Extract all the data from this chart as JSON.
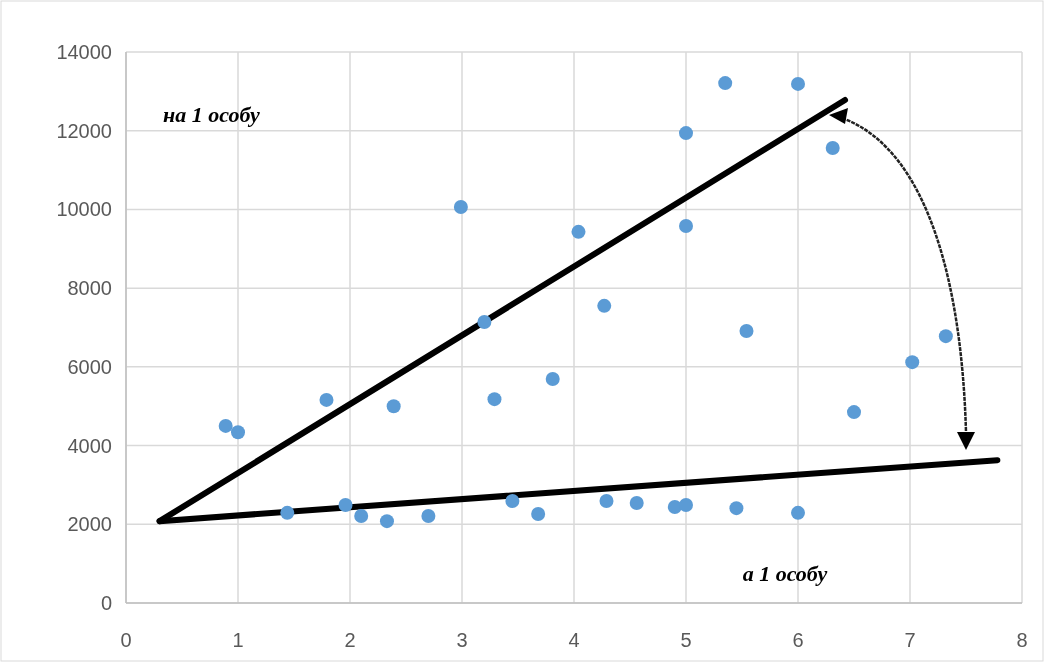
{
  "chart_data": {
    "type": "scatter",
    "xlim": [
      0,
      8
    ],
    "xticks": [
      0,
      1,
      2,
      3,
      4,
      5,
      6,
      7,
      8
    ],
    "ylim": [
      0,
      14000
    ],
    "yticks": [
      0,
      2000,
      4000,
      6000,
      8000,
      10000,
      12000,
      14000
    ],
    "grid": true,
    "marker": "circle",
    "annotations": [
      "на 1 особу",
      "а 1 особу"
    ],
    "series": [
      {
        "color": "#5b9bd5",
        "x": [
          0.89,
          1.0,
          1.44,
          1.79,
          1.96,
          2.1,
          2.33,
          2.39,
          2.7,
          2.99,
          3.2,
          3.29,
          3.45,
          3.68,
          3.81,
          4.04,
          4.27,
          4.29,
          4.56,
          4.9,
          5.0,
          5.0,
          5.0,
          5.35,
          5.45,
          5.54,
          6.0,
          6.0,
          6.31,
          6.5,
          7.02,
          7.32
        ],
        "values": [
          4500,
          4340,
          2290,
          5160,
          2490,
          2210,
          2080,
          5000,
          2210,
          10060,
          7140,
          5180,
          2590,
          2260,
          5690,
          9430,
          7550,
          2590,
          2540,
          2440,
          2490,
          11940,
          9580,
          13210,
          2410,
          6910,
          13190,
          2290,
          11560,
          4850,
          6120,
          6780
        ]
      },
      {
        "type": "line",
        "marker": "none",
        "color": "#000000",
        "x": [
          0.3,
          6.42
        ],
        "values": [
          2080,
          12780
        ]
      },
      {
        "type": "line",
        "marker": "none",
        "color": "#000000",
        "x": [
          0.3,
          7.78
        ],
        "values": [
          2080,
          3630
        ]
      }
    ]
  }
}
